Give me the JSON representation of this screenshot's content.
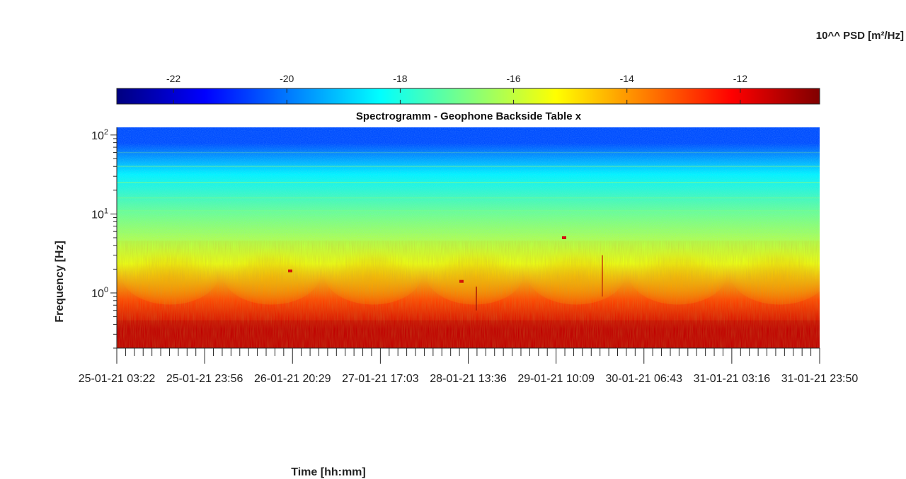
{
  "chart_data": {
    "type": "heatmap",
    "title": "Spectrogramm - Geophone Backside Table x",
    "xlabel": "Time [hh:mm]",
    "ylabel": "Frequency [Hz]",
    "colorbar": {
      "label": "10^^ PSD [m²/Hz]",
      "ticks": [
        "-22",
        "-20",
        "-18",
        "-16",
        "-14",
        "-12"
      ],
      "tick_values": [
        -22,
        -20,
        -18,
        -16,
        -14,
        -12
      ],
      "range": [
        -23,
        -10.6
      ],
      "colormap": "jet"
    },
    "y_scale": "log",
    "ylim": [
      0.2,
      125
    ],
    "y_ticks": [
      {
        "value": 1,
        "base": "10",
        "exp": "0"
      },
      {
        "value": 10,
        "base": "10",
        "exp": "1"
      },
      {
        "value": 100,
        "base": "10",
        "exp": "2"
      }
    ],
    "x_range": [
      "25-01-21 03:22",
      "31-01-21 23:50"
    ],
    "x_ticks": [
      "25-01-21 03:22",
      "25-01-21 23:56",
      "26-01-21 20:29",
      "27-01-21 17:03",
      "28-01-21 13:36",
      "29-01-21 10:09",
      "30-01-21 06:43",
      "31-01-21 03:16",
      "31-01-21 23:50"
    ],
    "psd_bands_log10": [
      {
        "freq_range_hz": [
          0.2,
          0.6
        ],
        "psd_log10": -11.5
      },
      {
        "freq_range_hz": [
          0.6,
          1.1
        ],
        "psd_log10": -13.0
      },
      {
        "freq_range_hz": [
          1.1,
          5
        ],
        "psd_log10": -15.5
      },
      {
        "freq_range_hz": [
          5,
          20
        ],
        "psd_log10": -17.0
      },
      {
        "freq_range_hz": [
          20,
          50
        ],
        "psd_log10": -18.5
      },
      {
        "freq_range_hz": [
          50,
          125
        ],
        "psd_log10": -20.5
      }
    ],
    "grid": false,
    "colors": {
      "background": "#ffffff",
      "axis": "#262626"
    }
  }
}
